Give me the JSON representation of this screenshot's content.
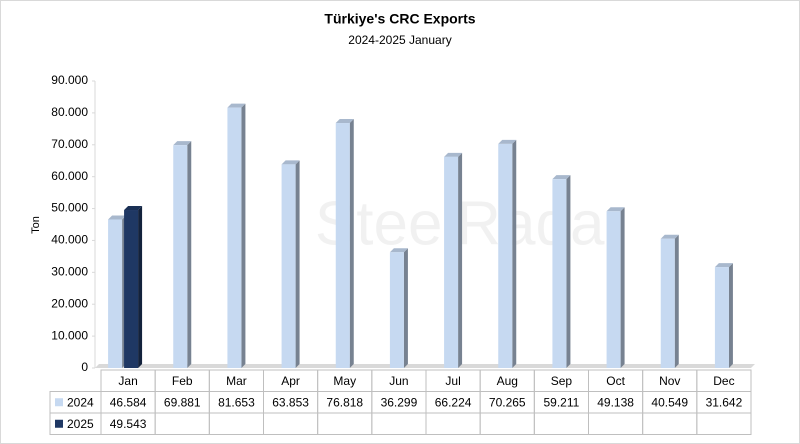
{
  "chart_data": {
    "type": "bar",
    "title": "Türkiye's CRC Exports",
    "subtitle": "2024-2025 January",
    "y_label": "Ton",
    "watermark": "SteelRadar",
    "categories": [
      "Jan",
      "Feb",
      "Mar",
      "Apr",
      "May",
      "Jun",
      "Jul",
      "Aug",
      "Sep",
      "Oct",
      "Nov",
      "Dec"
    ],
    "series": [
      {
        "name": "2024",
        "color": "#c6d9f1",
        "values": [
          46584,
          69881,
          81653,
          63853,
          76818,
          36299,
          66224,
          70265,
          59211,
          49138,
          40549,
          31642
        ],
        "value_labels": [
          "46.584",
          "69.881",
          "81.653",
          "63.853",
          "76.818",
          "36.299",
          "66.224",
          "70.265",
          "59.211",
          "49.138",
          "40.549",
          "31.642"
        ]
      },
      {
        "name": "2025",
        "color": "#1f3864",
        "values": [
          49543,
          null,
          null,
          null,
          null,
          null,
          null,
          null,
          null,
          null,
          null,
          null
        ],
        "value_labels": [
          "49.543",
          null,
          null,
          null,
          null,
          null,
          null,
          null,
          null,
          null,
          null,
          null
        ]
      }
    ],
    "ylim": [
      0,
      90000
    ],
    "yticks": [
      0,
      {
        "value": 10000,
        "label": "10.000"
      },
      {
        "value": 20000,
        "label": "20.000"
      },
      {
        "value": 30000,
        "label": "30.000"
      },
      {
        "value": 40000,
        "label": "40.000"
      },
      {
        "value": 50000,
        "label": "50.000"
      },
      {
        "value": 60000,
        "label": "60.000"
      },
      {
        "value": 70000,
        "label": "70.000"
      },
      {
        "value": 80000,
        "label": "80.000"
      },
      {
        "value": 90000,
        "label": "90.000"
      }
    ],
    "grid": false
  }
}
